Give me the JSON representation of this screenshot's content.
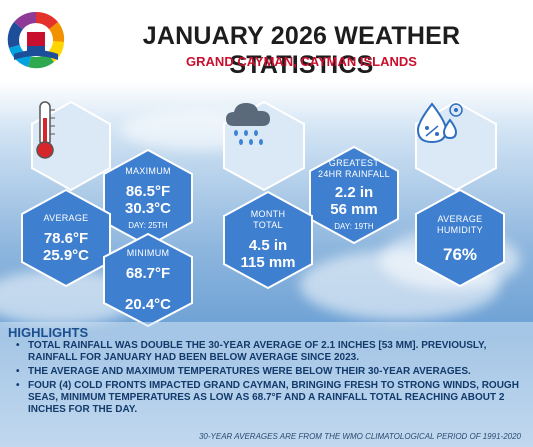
{
  "header": {
    "title": "JANUARY 2026 WEATHER STATISTICS",
    "subtitle": "GRAND CAYMAN, CAYMAN ISLANDS"
  },
  "temperature": {
    "average": {
      "label": "AVERAGE",
      "f": "78.6°F",
      "c": "25.9°C"
    },
    "maximum": {
      "label": "MAXIMUM",
      "f": "86.5°F",
      "c": "30.3°C",
      "day": "DAY: 25TH"
    },
    "minimum": {
      "label": "MINIMUM",
      "f": "68.7°F",
      "c": "20.4°C"
    }
  },
  "rainfall": {
    "month_label": "MONTH TOTAL",
    "month_in": "4.5 in",
    "month_mm": "115 mm",
    "greatest_label": "GREATEST 24HR RAINFALL",
    "greatest_in": "2.2 in",
    "greatest_mm": "56 mm",
    "greatest_day": "DAY: 19TH"
  },
  "humidity": {
    "label": "AVERAGE HUMIDITY",
    "value": "76%"
  },
  "highlights": {
    "title": "HIGHLIGHTS",
    "items": [
      "TOTAL RAINFALL WAS DOUBLE THE 30-YEAR AVERAGE OF 2.1 INCHES [53 MM]. PREVIOUSLY, RAINFALL FOR JANUARY HAD BEEN BELOW AVERAGE SINCE 2023.",
      "THE AVERAGE AND MAXIMUM TEMPERATURES WERE BELOW THEIR 30-YEAR AVERAGES.",
      "FOUR (4) COLD FRONTS IMPACTED GRAND CAYMAN, BRINGING FRESH TO STRONG WINDS, ROUGH SEAS, MINIMUM TEMPERATURES AS LOW AS 68.7°F AND A RAINFALL TOTAL REACHING ABOUT 2 INCHES FOR THE DAY."
    ]
  },
  "footnote": "30-YEAR AVERAGES ARE FROM THE WMO CLIMATOLOGICAL PERIOD OF 1991-2020",
  "colors": {
    "hex_blue": "#3f7fd0",
    "title_red": "#c8102e",
    "highlight_text": "#123a6b"
  }
}
